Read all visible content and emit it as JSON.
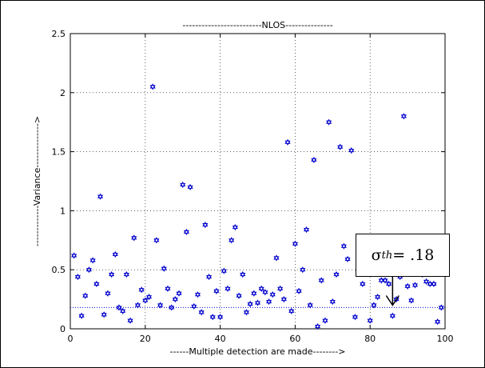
{
  "chart_data": {
    "type": "scatter",
    "title": "-------------------------NLOS---------------",
    "xlabel": "------Multiple detection are made-------->",
    "ylabel": "-------------Variance-------------->",
    "xlim": [
      0,
      100
    ],
    "ylim": [
      0,
      2.5
    ],
    "xticks": [
      "0",
      "20",
      "40",
      "60",
      "80",
      "100"
    ],
    "yticks": [
      "0",
      "0.5",
      "1",
      "1.5",
      "2",
      "2.5"
    ],
    "grid": true,
    "marker": "hexagram",
    "color": "#0000cc",
    "threshold_line": {
      "y": 0.18,
      "style": "dotted",
      "color": "#0000cc"
    },
    "annotation": {
      "symbol": "σ",
      "subscript": "th",
      "text": "= .18",
      "arrow_to": {
        "x": 86,
        "y": 0.2
      }
    },
    "x": [
      1,
      2,
      3,
      4,
      5,
      6,
      7,
      8,
      9,
      10,
      11,
      12,
      13,
      14,
      15,
      16,
      17,
      18,
      19,
      20,
      21,
      22,
      23,
      24,
      25,
      26,
      27,
      28,
      29,
      30,
      31,
      32,
      33,
      34,
      35,
      36,
      37,
      38,
      39,
      40,
      41,
      42,
      43,
      44,
      45,
      46,
      47,
      48,
      49,
      50,
      51,
      52,
      53,
      54,
      55,
      56,
      57,
      58,
      59,
      60,
      61,
      62,
      63,
      64,
      65,
      66,
      67,
      68,
      69,
      70,
      71,
      72,
      73,
      74,
      75,
      76,
      77,
      78,
      79,
      80,
      81,
      82,
      83,
      84,
      85,
      86,
      87,
      88,
      89,
      90,
      91,
      92,
      93,
      94,
      95,
      96,
      97,
      98,
      99
    ],
    "y": [
      0.62,
      0.44,
      0.11,
      0.28,
      0.5,
      0.58,
      0.38,
      1.12,
      0.12,
      0.3,
      0.46,
      0.63,
      0.18,
      0.15,
      0.46,
      0.07,
      0.77,
      0.2,
      0.33,
      0.24,
      0.27,
      2.05,
      0.75,
      0.2,
      0.51,
      0.34,
      0.18,
      0.25,
      0.3,
      1.22,
      0.82,
      1.2,
      0.19,
      0.29,
      0.14,
      0.88,
      0.44,
      0.1,
      0.32,
      0.1,
      0.49,
      0.34,
      0.75,
      0.86,
      0.28,
      0.46,
      0.14,
      0.21,
      0.3,
      0.22,
      0.34,
      0.31,
      0.23,
      0.29,
      0.6,
      0.34,
      0.25,
      1.58,
      0.15,
      0.72,
      0.32,
      0.5,
      0.84,
      0.2,
      1.43,
      0.02,
      0.41,
      0.07,
      1.75,
      0.23,
      0.46,
      1.54,
      0.7,
      0.59,
      1.51,
      0.1,
      0.47,
      0.38,
      0.48,
      0.07,
      0.2,
      0.27,
      0.41,
      0.41,
      0.38,
      0.11,
      0.25,
      0.44,
      1.8,
      0.36,
      0.24,
      0.37,
      0.48,
      0.46,
      0.4,
      0.38,
      0.38,
      0.06,
      0.18
    ]
  }
}
